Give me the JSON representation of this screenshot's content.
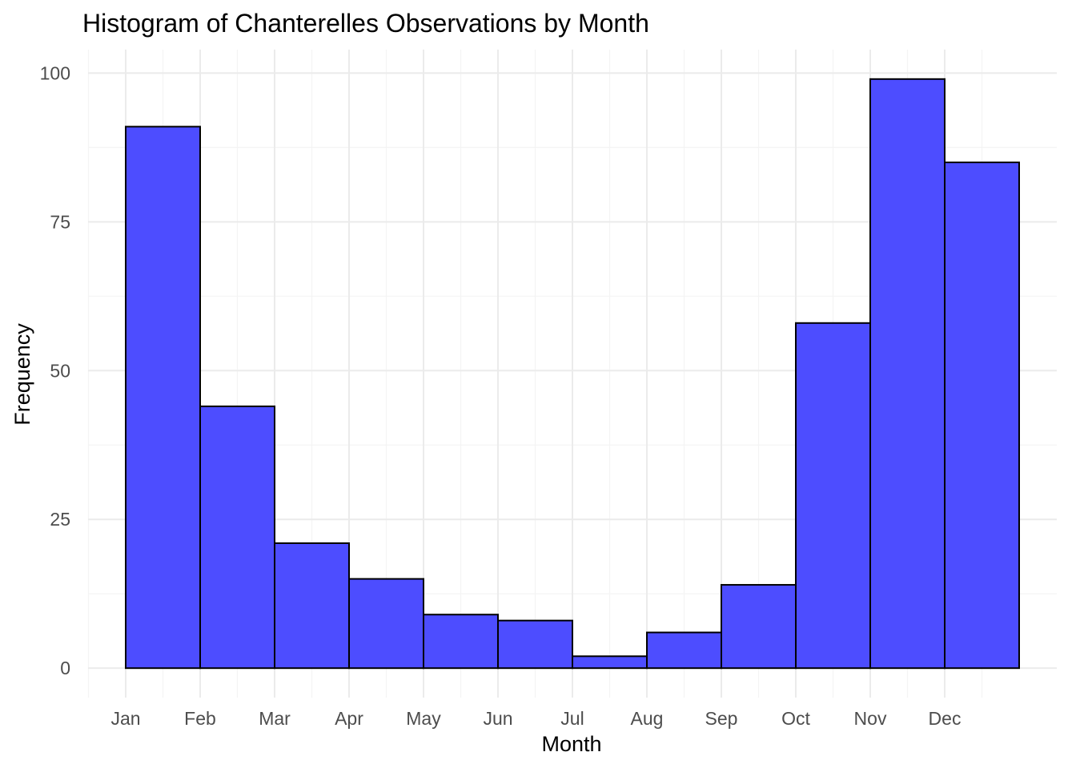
{
  "chart_data": {
    "type": "bar",
    "title": "Histogram of Chanterelles Observations by Month",
    "xlabel": "Month",
    "ylabel": "Frequency",
    "categories": [
      "Jan",
      "Feb",
      "Mar",
      "Apr",
      "May",
      "Jun",
      "Jul",
      "Aug",
      "Sep",
      "Oct",
      "Nov",
      "Dec"
    ],
    "values": [
      91,
      44,
      21,
      15,
      9,
      8,
      2,
      6,
      14,
      58,
      99,
      85
    ],
    "y_ticks": [
      "0",
      "25",
      "50",
      "75",
      "100"
    ],
    "y_tick_values": [
      0,
      25,
      50,
      75,
      100
    ],
    "ylim": [
      -4.95,
      103.95
    ],
    "grid": true,
    "bar_color": "#4d4dff",
    "bar_outline": "#000000",
    "legend": "none"
  }
}
